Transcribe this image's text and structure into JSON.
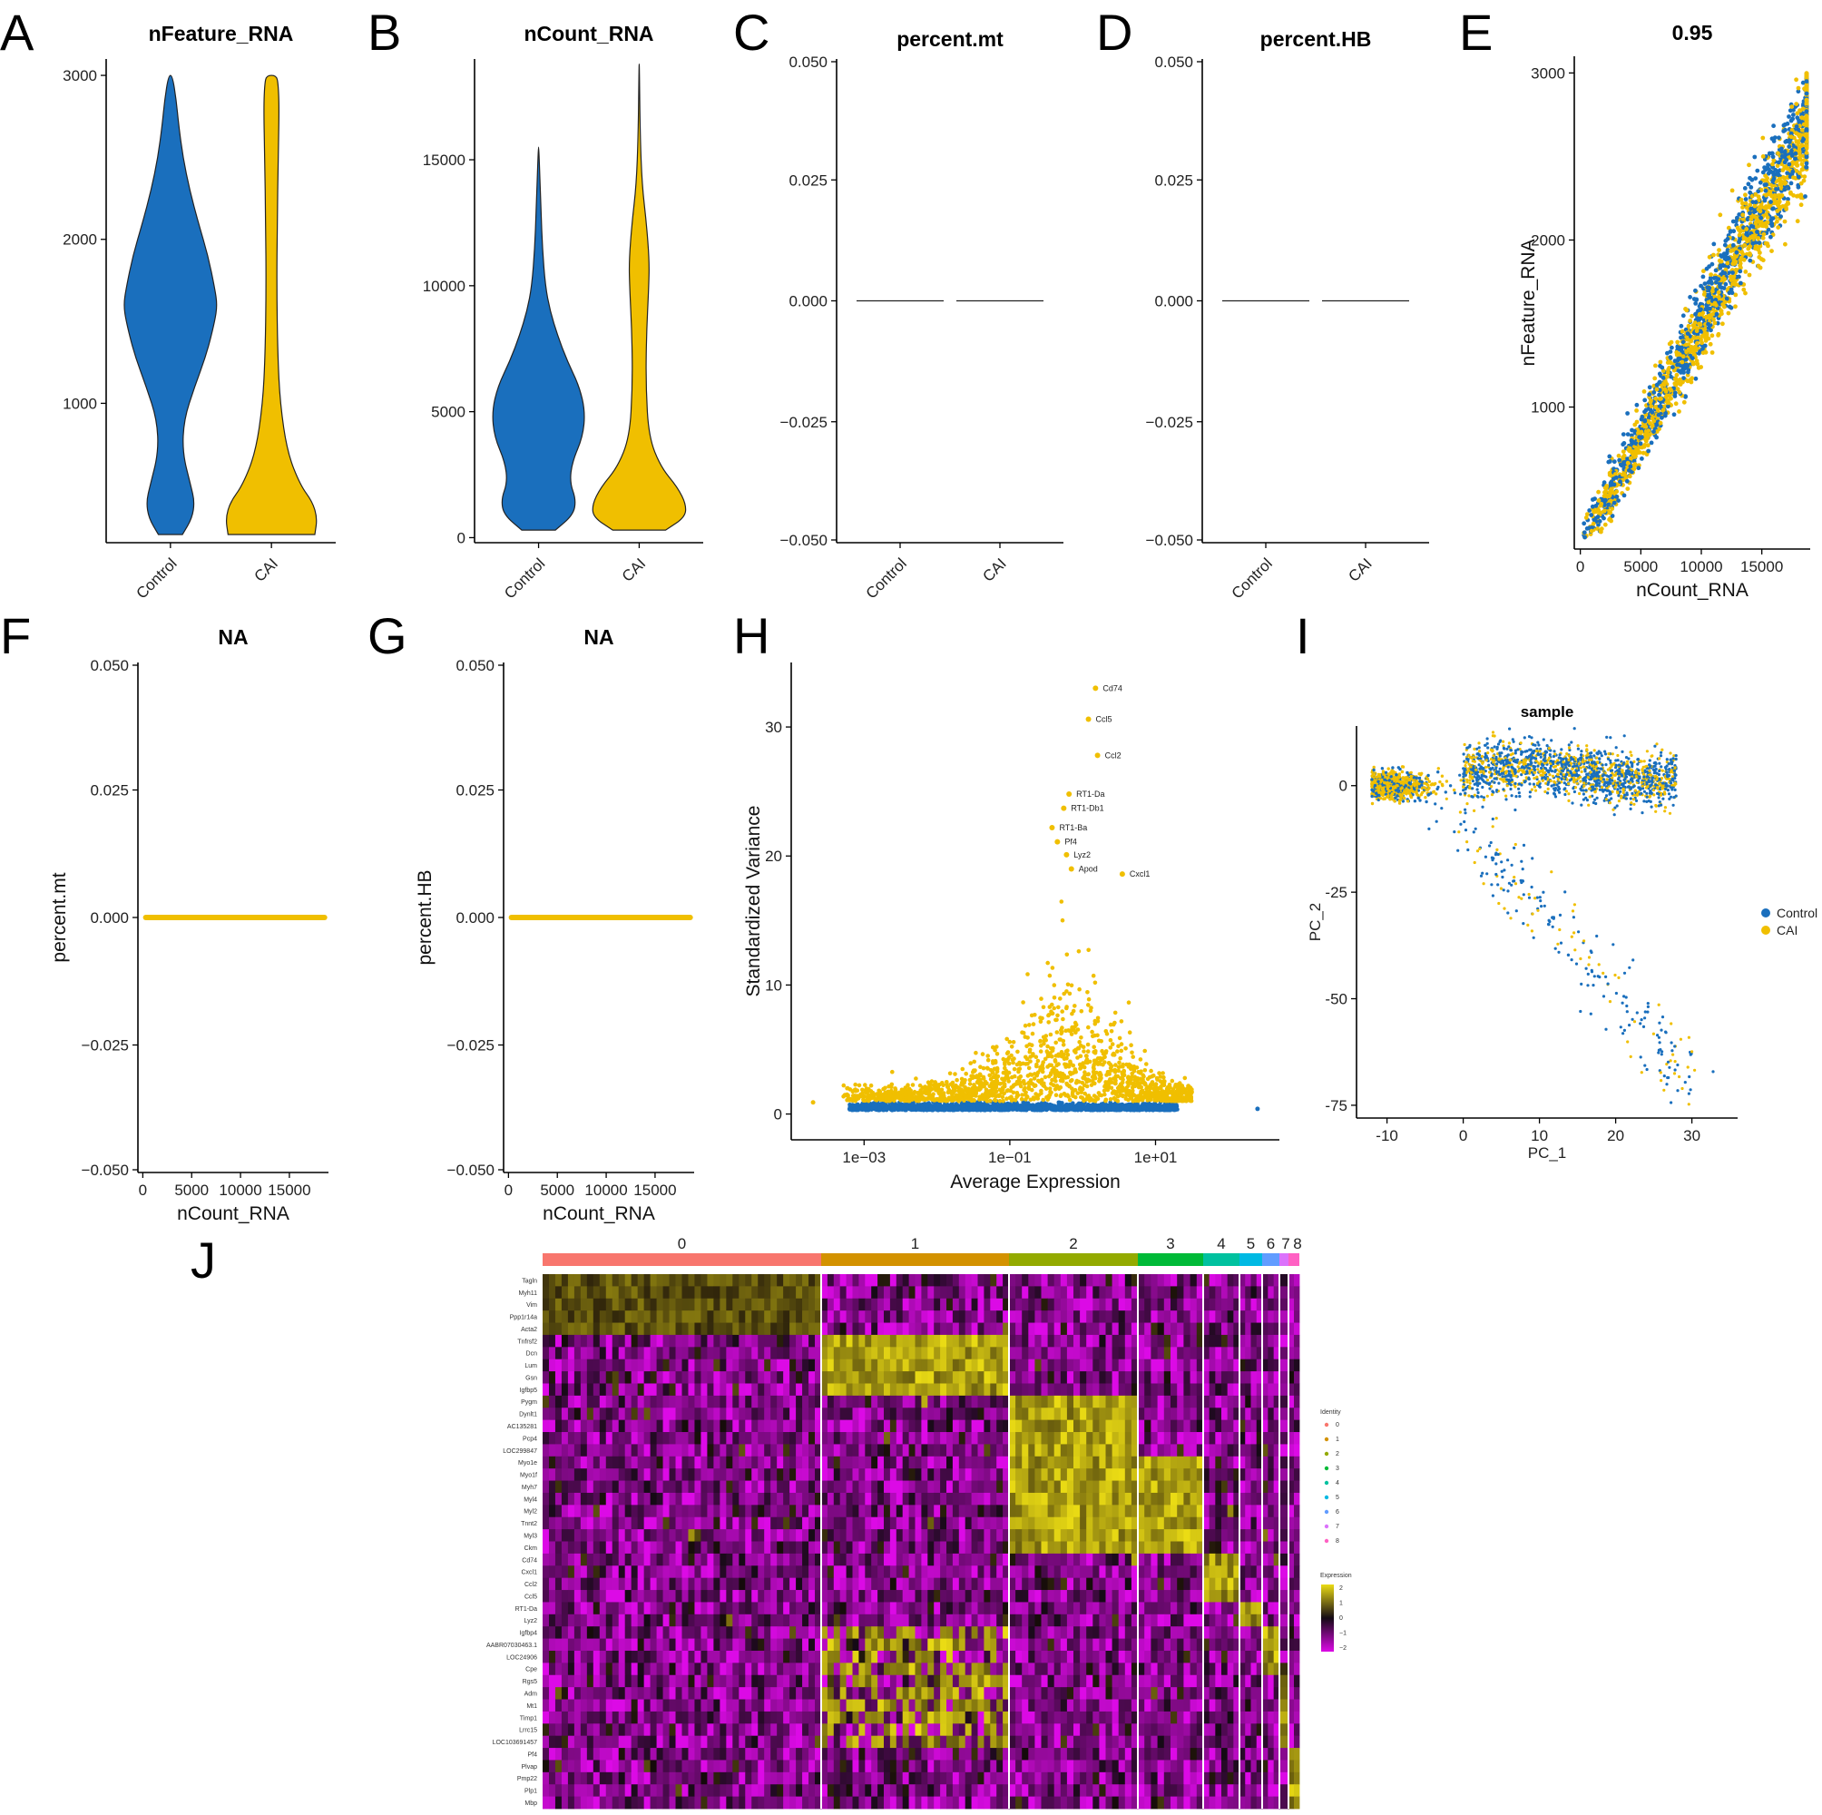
{
  "colors": {
    "control": "#1a6fbd",
    "cai": "#f0bf00",
    "axis": "#000000"
  },
  "panel_labels": [
    "A",
    "B",
    "C",
    "D",
    "E",
    "F",
    "G",
    "H",
    "I",
    "J"
  ],
  "chart_data": [
    {
      "id": "A",
      "type": "violin",
      "title": "nFeature_RNA",
      "categories": [
        "Control",
        "CAI"
      ],
      "ylim": [
        150,
        3100
      ],
      "yticks": [
        1000,
        2000,
        3000
      ],
      "violins": [
        {
          "name": "Control",
          "range": [
            200,
            3000
          ],
          "density": [
            [
              200,
              0.25
            ],
            [
              300,
              0.45
            ],
            [
              400,
              0.5
            ],
            [
              500,
              0.42
            ],
            [
              700,
              0.25
            ],
            [
              900,
              0.28
            ],
            [
              1100,
              0.5
            ],
            [
              1300,
              0.75
            ],
            [
              1500,
              0.92
            ],
            [
              1600,
              0.97
            ],
            [
              1700,
              0.92
            ],
            [
              1900,
              0.78
            ],
            [
              2100,
              0.58
            ],
            [
              2300,
              0.4
            ],
            [
              2500,
              0.26
            ],
            [
              2700,
              0.17
            ],
            [
              2850,
              0.12
            ],
            [
              3000,
              0.04
            ]
          ]
        },
        {
          "name": "CAI",
          "range": [
            200,
            3000
          ],
          "density": [
            [
              200,
              0.9
            ],
            [
              300,
              0.95
            ],
            [
              400,
              0.85
            ],
            [
              500,
              0.6
            ],
            [
              700,
              0.33
            ],
            [
              1000,
              0.18
            ],
            [
              1300,
              0.13
            ],
            [
              1700,
              0.11
            ],
            [
              2100,
              0.12
            ],
            [
              2500,
              0.14
            ],
            [
              2800,
              0.16
            ],
            [
              2950,
              0.14
            ],
            [
              3000,
              0.1
            ]
          ]
        }
      ]
    },
    {
      "id": "B",
      "type": "violin",
      "title": "nCount_RNA",
      "categories": [
        "Control",
        "CAI"
      ],
      "ylim": [
        -200,
        19000
      ],
      "yticks": [
        0,
        5000,
        10000,
        15000
      ],
      "violins": [
        {
          "name": "Control",
          "range": [
            300,
            15500
          ],
          "density": [
            [
              300,
              0.35
            ],
            [
              900,
              0.72
            ],
            [
              1500,
              0.78
            ],
            [
              2200,
              0.65
            ],
            [
              3000,
              0.7
            ],
            [
              4000,
              0.92
            ],
            [
              5000,
              0.97
            ],
            [
              6000,
              0.85
            ],
            [
              7000,
              0.6
            ],
            [
              8000,
              0.4
            ],
            [
              9000,
              0.24
            ],
            [
              10000,
              0.14
            ],
            [
              11500,
              0.08
            ],
            [
              13000,
              0.05
            ],
            [
              15500,
              0.005
            ]
          ]
        },
        {
          "name": "CAI",
          "range": [
            300,
            18800
          ],
          "density": [
            [
              300,
              0.55
            ],
            [
              800,
              0.95
            ],
            [
              1300,
              0.98
            ],
            [
              2000,
              0.8
            ],
            [
              2800,
              0.45
            ],
            [
              4000,
              0.2
            ],
            [
              6000,
              0.14
            ],
            [
              8000,
              0.15
            ],
            [
              10000,
              0.2
            ],
            [
              11000,
              0.21
            ],
            [
              12500,
              0.15
            ],
            [
              14000,
              0.06
            ],
            [
              16000,
              0.02
            ],
            [
              18800,
              0.003
            ]
          ]
        }
      ]
    },
    {
      "id": "C",
      "type": "violin",
      "title": "percent.mt",
      "categories": [
        "Control",
        "CAI"
      ],
      "ylim": [
        -0.05,
        0.05
      ],
      "yticks": [
        "0.050",
        "0.025",
        "0.000",
        "−0.025",
        "−0.050"
      ],
      "values": [
        0,
        0
      ]
    },
    {
      "id": "D",
      "type": "violin",
      "title": "percent.HB",
      "categories": [
        "Control",
        "CAI"
      ],
      "ylim": [
        -0.05,
        0.05
      ],
      "yticks": [
        "0.050",
        "0.025",
        "0.000",
        "−0.025",
        "−0.050"
      ],
      "values": [
        0,
        0
      ]
    },
    {
      "id": "E",
      "type": "scatter",
      "title": "0.95",
      "xlabel": "nCount_RNA",
      "ylabel": "nFeature_RNA",
      "xlim": [
        -500,
        19000
      ],
      "ylim": [
        150,
        3100
      ],
      "xticks": [
        0,
        5000,
        10000,
        15000
      ],
      "yticks": [
        1000,
        2000,
        3000
      ]
    },
    {
      "id": "F",
      "type": "scatter",
      "title": "NA",
      "xlabel": "nCount_RNA",
      "ylabel": "percent.mt",
      "xlim": [
        -500,
        19000
      ],
      "ylim": [
        -0.05,
        0.05
      ],
      "xticks": [
        0,
        5000,
        10000,
        15000
      ],
      "yticks": [
        "0.050",
        "0.025",
        "0.000",
        "−0.025",
        "−0.050"
      ]
    },
    {
      "id": "G",
      "type": "scatter",
      "title": "NA",
      "xlabel": "nCount_RNA",
      "ylabel": "percent.HB",
      "xlim": [
        -500,
        19000
      ],
      "ylim": [
        -0.05,
        0.05
      ],
      "xticks": [
        0,
        5000,
        10000,
        15000
      ],
      "yticks": [
        "0.050",
        "0.025",
        "0.000",
        "−0.025",
        "−0.050"
      ]
    },
    {
      "id": "H",
      "type": "scatter",
      "title": "",
      "xlabel": "Average Expression",
      "ylabel": "Standardized Variance",
      "xscale": "log",
      "xticks": [
        "1e−03",
        "1e−01",
        "1e+01"
      ],
      "yticks": [
        0,
        10,
        20,
        30
      ],
      "ylim": [
        -2,
        35
      ],
      "labels": [
        {
          "gene": "Cd74",
          "x": 1.5,
          "y": 33
        },
        {
          "gene": "Ccl5",
          "x": 1.2,
          "y": 30.6
        },
        {
          "gene": "Ccl2",
          "x": 1.6,
          "y": 27.8
        },
        {
          "gene": "RT1-Da",
          "x": 0.65,
          "y": 24.8
        },
        {
          "gene": "RT1-Db1",
          "x": 0.55,
          "y": 23.7
        },
        {
          "gene": "RT1-Ba",
          "x": 0.38,
          "y": 22.2
        },
        {
          "gene": "Pf4",
          "x": 0.45,
          "y": 21.1
        },
        {
          "gene": "Lyz2",
          "x": 0.6,
          "y": 20.1
        },
        {
          "gene": "Apod",
          "x": 0.7,
          "y": 19
        },
        {
          "gene": "Cxcl1",
          "x": 3.5,
          "y": 18.6
        }
      ]
    },
    {
      "id": "I",
      "type": "scatter",
      "title": "sample",
      "xlabel": "PC_1",
      "ylabel": "PC_2",
      "xticks": [
        -10,
        0,
        10,
        20,
        30
      ],
      "yticks": [
        0,
        -25,
        -50,
        -75
      ],
      "xlim": [
        -14,
        36
      ],
      "ylim": [
        -78,
        14
      ],
      "legend": [
        "Control",
        "CAI"
      ]
    },
    {
      "id": "J",
      "type": "heatmap",
      "clusters": [
        "0",
        "1",
        "2",
        "3",
        "4",
        "5",
        "6",
        "7",
        "8"
      ],
      "cluster_colors": [
        "#f8766d",
        "#d39200",
        "#93aa00",
        "#00ba38",
        "#00c19f",
        "#00b9e3",
        "#619cff",
        "#db72fb",
        "#ff61c3"
      ],
      "genes": [
        "Tagln",
        "Myh11",
        "Vim",
        "Ppp1r14a",
        "Acta2",
        "Tnfrsf2",
        "Dcn",
        "Lum",
        "Gsn",
        "Igfbp5",
        "Pygm",
        "Dynlt1",
        "AC135281",
        "Pcp4",
        "LOC299847",
        "Myo1e",
        "Myo1f",
        "Myh7",
        "Myl4",
        "Myl2",
        "Tnnt2",
        "Myl3",
        "Ckm",
        "Cd74",
        "Cxcl1",
        "Ccl2",
        "Ccl5",
        "RT1-Da",
        "Lyz2",
        "Igfbp4",
        "AABR07030463.1",
        "LOC24906",
        "Cpe",
        "Rgs5",
        "Adm",
        "Mt1",
        "Timp1",
        "Lrrc15",
        "LOC103691457",
        "Pf4",
        "Plvap",
        "Pmp22",
        "Plp1",
        "Mbp"
      ],
      "legend_identity_title": "Identity",
      "legend_expression_title": "Expression",
      "expression_ticks": [
        "2",
        "1",
        "0",
        "−1",
        "−2"
      ]
    }
  ]
}
